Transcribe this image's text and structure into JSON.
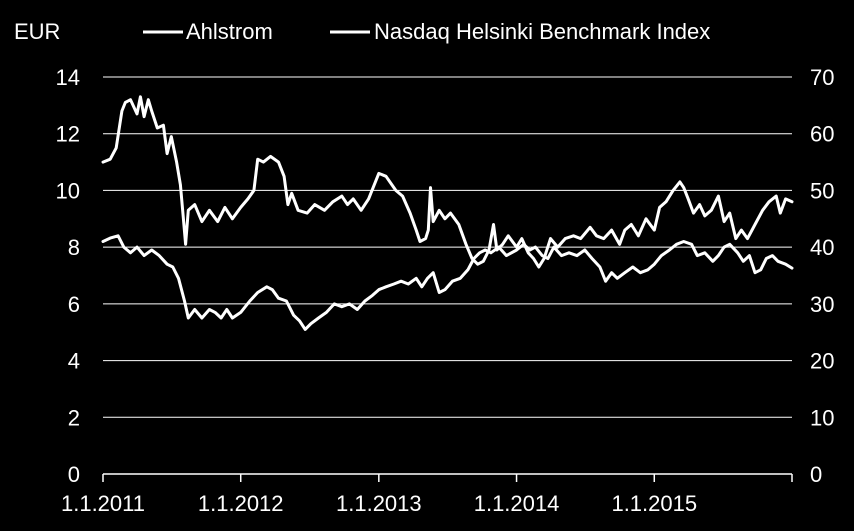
{
  "chart_data": {
    "type": "line",
    "title": "",
    "left_axis_label": "EUR",
    "legend_placement": "top",
    "grid": true,
    "colors": {
      "background": "#000000",
      "lines": "#ffffff"
    },
    "left_axis": {
      "min": 0,
      "max": 14,
      "ticks": [
        "0",
        "2",
        "4",
        "6",
        "8",
        "10",
        "12",
        "14"
      ]
    },
    "right_axis": {
      "min": 0,
      "max": 70,
      "ticks": [
        "0",
        "10",
        "20",
        "30",
        "40",
        "50",
        "60",
        "70"
      ]
    },
    "x_axis": {
      "start": "2011-01-01",
      "end": "2016-01-01",
      "tick_labels": [
        "1.1.2011",
        "1.1.2012",
        "1.1.2013",
        "1.1.2014",
        "1.1.2015"
      ]
    },
    "series": [
      {
        "name": "Ahlstrom",
        "axis": "left",
        "points": [
          [
            "2011-01-01",
            11.0
          ],
          [
            "2011-01-20",
            11.1
          ],
          [
            "2011-02-05",
            11.5
          ],
          [
            "2011-02-20",
            12.8
          ],
          [
            "2011-03-01",
            13.1
          ],
          [
            "2011-03-15",
            13.2
          ],
          [
            "2011-04-01",
            12.7
          ],
          [
            "2011-04-10",
            13.3
          ],
          [
            "2011-04-20",
            12.6
          ],
          [
            "2011-05-01",
            13.2
          ],
          [
            "2011-05-10",
            12.8
          ],
          [
            "2011-05-25",
            12.2
          ],
          [
            "2011-06-10",
            12.3
          ],
          [
            "2011-06-20",
            11.3
          ],
          [
            "2011-07-01",
            11.9
          ],
          [
            "2011-07-15",
            11.0
          ],
          [
            "2011-07-25",
            10.2
          ],
          [
            "2011-08-02",
            9.0
          ],
          [
            "2011-08-08",
            8.1
          ],
          [
            "2011-08-15",
            9.3
          ],
          [
            "2011-09-01",
            9.5
          ],
          [
            "2011-09-20",
            8.9
          ],
          [
            "2011-10-10",
            9.3
          ],
          [
            "2011-11-01",
            8.9
          ],
          [
            "2011-11-20",
            9.4
          ],
          [
            "2011-12-10",
            9.0
          ],
          [
            "2012-01-01",
            9.4
          ],
          [
            "2012-01-20",
            9.7
          ],
          [
            "2012-02-05",
            10.0
          ],
          [
            "2012-02-15",
            11.1
          ],
          [
            "2012-03-01",
            11.0
          ],
          [
            "2012-03-20",
            11.2
          ],
          [
            "2012-04-10",
            11.0
          ],
          [
            "2012-04-25",
            10.5
          ],
          [
            "2012-05-05",
            9.5
          ],
          [
            "2012-05-15",
            9.9
          ],
          [
            "2012-06-01",
            9.3
          ],
          [
            "2012-06-25",
            9.2
          ],
          [
            "2012-07-15",
            9.5
          ],
          [
            "2012-08-10",
            9.3
          ],
          [
            "2012-09-01",
            9.6
          ],
          [
            "2012-09-25",
            9.8
          ],
          [
            "2012-10-10",
            9.5
          ],
          [
            "2012-10-25",
            9.7
          ],
          [
            "2012-11-15",
            9.3
          ],
          [
            "2012-12-05",
            9.7
          ],
          [
            "2013-01-01",
            10.6
          ],
          [
            "2013-01-20",
            10.5
          ],
          [
            "2013-02-15",
            10.0
          ],
          [
            "2013-03-05",
            9.8
          ],
          [
            "2013-03-25",
            9.2
          ],
          [
            "2013-04-10",
            8.6
          ],
          [
            "2013-04-20",
            8.2
          ],
          [
            "2013-05-05",
            8.3
          ],
          [
            "2013-05-12",
            8.6
          ],
          [
            "2013-05-18",
            10.1
          ],
          [
            "2013-05-25",
            8.9
          ],
          [
            "2013-06-10",
            9.3
          ],
          [
            "2013-06-25",
            9.0
          ],
          [
            "2013-07-10",
            9.2
          ],
          [
            "2013-08-01",
            8.8
          ],
          [
            "2013-08-20",
            8.1
          ],
          [
            "2013-09-05",
            7.6
          ],
          [
            "2013-09-20",
            7.4
          ],
          [
            "2013-10-05",
            7.5
          ],
          [
            "2013-10-20",
            7.9
          ],
          [
            "2013-11-01",
            8.8
          ],
          [
            "2013-11-10",
            7.9
          ],
          [
            "2013-11-25",
            8.1
          ],
          [
            "2013-12-10",
            8.4
          ],
          [
            "2014-01-01",
            8.0
          ],
          [
            "2014-01-15",
            8.3
          ],
          [
            "2014-02-01",
            7.8
          ],
          [
            "2014-02-15",
            7.6
          ],
          [
            "2014-03-01",
            7.3
          ],
          [
            "2014-03-15",
            7.6
          ],
          [
            "2014-04-01",
            8.3
          ],
          [
            "2014-04-20",
            8.0
          ],
          [
            "2014-05-10",
            8.3
          ],
          [
            "2014-06-01",
            8.4
          ],
          [
            "2014-06-20",
            8.3
          ],
          [
            "2014-07-15",
            8.7
          ],
          [
            "2014-08-01",
            8.4
          ],
          [
            "2014-08-20",
            8.3
          ],
          [
            "2014-09-10",
            8.6
          ],
          [
            "2014-10-01",
            8.1
          ],
          [
            "2014-10-15",
            8.6
          ],
          [
            "2014-11-01",
            8.8
          ],
          [
            "2014-11-20",
            8.4
          ],
          [
            "2014-12-10",
            9.0
          ],
          [
            "2015-01-01",
            8.6
          ],
          [
            "2015-01-15",
            9.4
          ],
          [
            "2015-02-01",
            9.6
          ],
          [
            "2015-02-20",
            10.0
          ],
          [
            "2015-03-10",
            10.3
          ],
          [
            "2015-03-20",
            10.1
          ],
          [
            "2015-04-01",
            9.7
          ],
          [
            "2015-04-15",
            9.2
          ],
          [
            "2015-05-01",
            9.5
          ],
          [
            "2015-05-15",
            9.1
          ],
          [
            "2015-06-01",
            9.3
          ],
          [
            "2015-06-20",
            9.8
          ],
          [
            "2015-07-05",
            8.9
          ],
          [
            "2015-07-20",
            9.2
          ],
          [
            "2015-08-05",
            8.3
          ],
          [
            "2015-08-20",
            8.6
          ],
          [
            "2015-09-05",
            8.3
          ],
          [
            "2015-09-25",
            8.8
          ],
          [
            "2015-10-15",
            9.3
          ],
          [
            "2015-11-01",
            9.6
          ],
          [
            "2015-11-20",
            9.8
          ],
          [
            "2015-12-01",
            9.2
          ],
          [
            "2015-12-15",
            9.7
          ],
          [
            "2016-01-01",
            9.6
          ]
        ]
      },
      {
        "name": "Nasdaq Helsinki Benchmark Index",
        "axis": "right",
        "points": [
          [
            "2011-01-01",
            41.0
          ],
          [
            "2011-01-20",
            41.6
          ],
          [
            "2011-02-10",
            42.0
          ],
          [
            "2011-02-25",
            40.0
          ],
          [
            "2011-03-15",
            39.0
          ],
          [
            "2011-04-01",
            40.0
          ],
          [
            "2011-04-20",
            38.5
          ],
          [
            "2011-05-10",
            39.5
          ],
          [
            "2011-05-30",
            38.5
          ],
          [
            "2011-06-20",
            37.0
          ],
          [
            "2011-07-05",
            36.5
          ],
          [
            "2011-07-20",
            34.5
          ],
          [
            "2011-08-05",
            30.5
          ],
          [
            "2011-08-15",
            27.5
          ],
          [
            "2011-09-01",
            29.0
          ],
          [
            "2011-09-20",
            27.5
          ],
          [
            "2011-10-10",
            29.0
          ],
          [
            "2011-10-25",
            28.5
          ],
          [
            "2011-11-10",
            27.5
          ],
          [
            "2011-11-25",
            29.0
          ],
          [
            "2011-12-10",
            27.5
          ],
          [
            "2012-01-01",
            28.5
          ],
          [
            "2012-01-25",
            30.5
          ],
          [
            "2012-02-15",
            32.0
          ],
          [
            "2012-03-10",
            33.0
          ],
          [
            "2012-03-25",
            32.5
          ],
          [
            "2012-04-10",
            31.0
          ],
          [
            "2012-05-01",
            30.5
          ],
          [
            "2012-05-20",
            28.0
          ],
          [
            "2012-06-05",
            27.0
          ],
          [
            "2012-06-20",
            25.5
          ],
          [
            "2012-07-05",
            26.5
          ],
          [
            "2012-07-25",
            27.5
          ],
          [
            "2012-08-15",
            28.5
          ],
          [
            "2012-09-05",
            30.0
          ],
          [
            "2012-09-25",
            29.5
          ],
          [
            "2012-10-15",
            30.0
          ],
          [
            "2012-11-05",
            29.0
          ],
          [
            "2012-11-25",
            30.5
          ],
          [
            "2012-12-15",
            31.5
          ],
          [
            "2013-01-01",
            32.5
          ],
          [
            "2013-01-20",
            33.0
          ],
          [
            "2013-02-10",
            33.5
          ],
          [
            "2013-03-01",
            34.0
          ],
          [
            "2013-03-20",
            33.5
          ],
          [
            "2013-04-10",
            34.5
          ],
          [
            "2013-04-25",
            33.0
          ],
          [
            "2013-05-10",
            34.5
          ],
          [
            "2013-05-25",
            35.5
          ],
          [
            "2013-06-10",
            32.0
          ],
          [
            "2013-06-25",
            32.5
          ],
          [
            "2013-07-15",
            34.0
          ],
          [
            "2013-08-05",
            34.5
          ],
          [
            "2013-08-25",
            36.0
          ],
          [
            "2013-09-10",
            38.0
          ],
          [
            "2013-09-25",
            39.0
          ],
          [
            "2013-10-10",
            39.5
          ],
          [
            "2013-10-25",
            39.0
          ],
          [
            "2013-11-15",
            40.0
          ],
          [
            "2013-12-05",
            38.5
          ],
          [
            "2014-01-01",
            39.5
          ],
          [
            "2014-01-20",
            40.5
          ],
          [
            "2014-02-05",
            39.5
          ],
          [
            "2014-02-20",
            40.0
          ],
          [
            "2014-03-10",
            38.5
          ],
          [
            "2014-03-25",
            38.0
          ],
          [
            "2014-04-10",
            40.0
          ],
          [
            "2014-04-30",
            38.5
          ],
          [
            "2014-05-20",
            39.0
          ],
          [
            "2014-06-10",
            38.5
          ],
          [
            "2014-07-01",
            39.5
          ],
          [
            "2014-07-20",
            38.0
          ],
          [
            "2014-08-10",
            36.5
          ],
          [
            "2014-08-25",
            34.0
          ],
          [
            "2014-09-10",
            35.5
          ],
          [
            "2014-09-25",
            34.5
          ],
          [
            "2014-10-15",
            35.5
          ],
          [
            "2014-11-05",
            36.5
          ],
          [
            "2014-11-25",
            35.5
          ],
          [
            "2014-12-15",
            36.0
          ],
          [
            "2015-01-01",
            37.0
          ],
          [
            "2015-01-20",
            38.5
          ],
          [
            "2015-02-10",
            39.5
          ],
          [
            "2015-03-01",
            40.5
          ],
          [
            "2015-03-20",
            41.0
          ],
          [
            "2015-04-10",
            40.5
          ],
          [
            "2015-04-25",
            38.5
          ],
          [
            "2015-05-15",
            39.0
          ],
          [
            "2015-06-05",
            37.5
          ],
          [
            "2015-06-20",
            38.5
          ],
          [
            "2015-07-05",
            40.0
          ],
          [
            "2015-07-20",
            40.5
          ],
          [
            "2015-08-10",
            39.0
          ],
          [
            "2015-08-25",
            37.5
          ],
          [
            "2015-09-10",
            38.5
          ],
          [
            "2015-09-25",
            35.5
          ],
          [
            "2015-10-10",
            36.0
          ],
          [
            "2015-10-25",
            38.0
          ],
          [
            "2015-11-10",
            38.5
          ],
          [
            "2015-11-25",
            37.5
          ],
          [
            "2015-12-15",
            37.0
          ],
          [
            "2016-01-01",
            36.3
          ]
        ]
      }
    ]
  }
}
